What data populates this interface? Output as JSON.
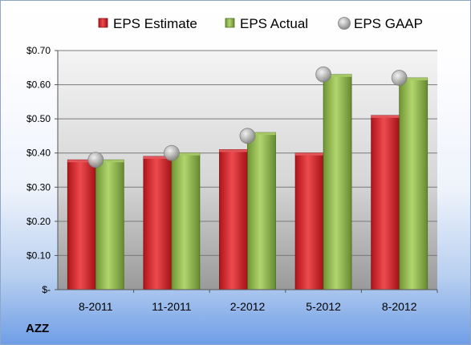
{
  "ticker": "AZZ",
  "colors": {
    "estimate": "#c8191e",
    "actual": "#8db64a",
    "gaap": "#b0b0b0"
  },
  "chart_data": {
    "type": "bar",
    "title": "",
    "xlabel": "",
    "ylabel": "",
    "categories": [
      "8-2011",
      "11-2011",
      "2-2012",
      "5-2012",
      "8-2012"
    ],
    "series": [
      {
        "name": "EPS Estimate",
        "values": [
          0.38,
          0.39,
          0.41,
          0.4,
          0.51
        ]
      },
      {
        "name": "EPS Actual",
        "values": [
          0.38,
          0.4,
          0.46,
          0.63,
          0.62
        ]
      },
      {
        "name": "EPS GAAP",
        "values": [
          0.38,
          0.4,
          0.45,
          0.63,
          0.62
        ]
      }
    ],
    "ylim": [
      0,
      0.7
    ],
    "yticks": [
      0,
      0.1,
      0.2,
      0.3,
      0.4,
      0.5,
      0.6,
      0.7
    ],
    "ytick_labels": [
      "$-",
      "$0.10",
      "$0.20",
      "$0.30",
      "$0.40",
      "$0.50",
      "$0.60",
      "$0.70"
    ],
    "grid": true,
    "legend_position": "top"
  }
}
